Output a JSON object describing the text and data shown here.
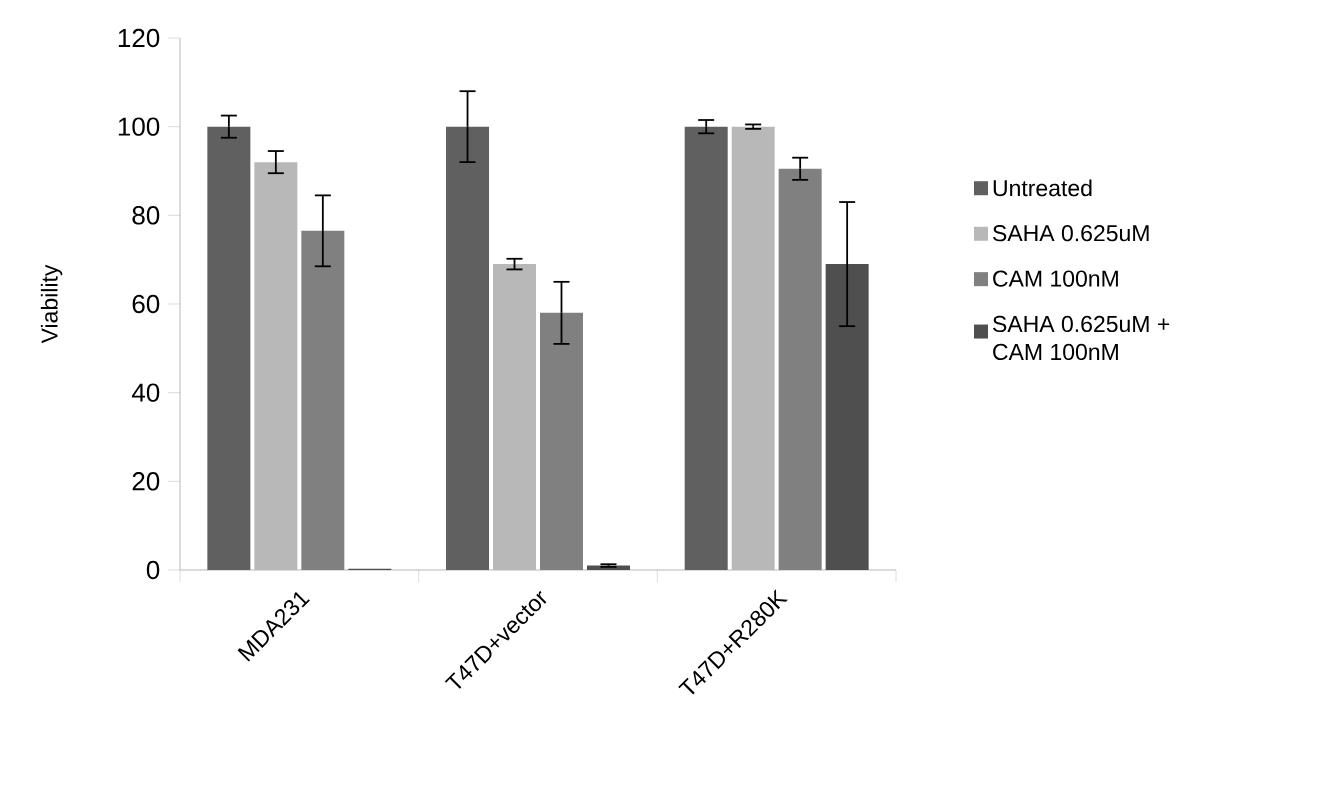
{
  "chart_data": {
    "type": "bar",
    "ylabel": "Viability",
    "categories": [
      "MDA231",
      "T47D+vector",
      "T47D+R280K"
    ],
    "series": [
      {
        "name": "Untreated",
        "color": "#606060",
        "values": [
          100,
          100,
          100
        ],
        "errors": [
          2.5,
          8,
          1.5
        ]
      },
      {
        "name": "SAHA 0.625uM",
        "color": "#b8b8b8",
        "values": [
          92,
          69,
          100
        ],
        "errors": [
          2.5,
          1.2,
          0.5
        ]
      },
      {
        "name": "CAM 100nM",
        "color": "#808080",
        "values": [
          76.5,
          58,
          90.5
        ],
        "errors": [
          8,
          7,
          2.5
        ]
      },
      {
        "name": "SAHA 0.625uM + CAM 100nM",
        "color": "#4f4f4f",
        "values": [
          0.3,
          1,
          69
        ],
        "errors": [
          null,
          0.3,
          14
        ]
      }
    ],
    "ylim": [
      0,
      120
    ],
    "yticks": [
      0,
      20,
      40,
      60,
      80,
      100,
      120
    ],
    "legend": "right"
  }
}
